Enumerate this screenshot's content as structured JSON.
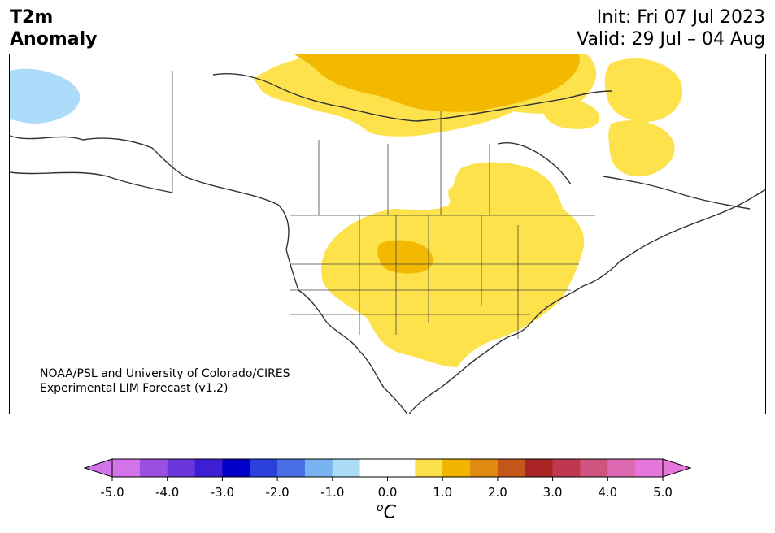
{
  "title": {
    "left_line1": "T2m",
    "left_line2": "Anomaly",
    "right_line1": "Init: Fri 07 Jul 2023",
    "right_line2": "Valid: 29 Jul – 04 Aug"
  },
  "credit": {
    "line1": "NOAA/PSL and University of Colorado/CIRES",
    "line2": "Experimental LIM Forecast (v1.2)"
  },
  "colorbar": {
    "unit_base": "C",
    "unit_prefix": "o",
    "min": -5.0,
    "max": 5.0,
    "ticks": [
      "-5.0",
      "-4.0",
      "-3.0",
      "-2.0",
      "-1.0",
      "0.0",
      "1.0",
      "2.0",
      "3.0",
      "4.0",
      "5.0"
    ],
    "colors": [
      "#d373e9",
      "#9b4fe0",
      "#6a37dc",
      "#3d1fd3",
      "#0000c9",
      "#2a3fdc",
      "#4a6fe6",
      "#79b3f2",
      "#addcf7",
      "#ffffff",
      "#ffffff",
      "#fbe04a",
      "#f2b600",
      "#df8a10",
      "#c4561a",
      "#ab2425",
      "#c03750",
      "#cf5580",
      "#dc69b2",
      "#e776dc"
    ],
    "under_color": "#d373e9",
    "over_color": "#e776dc"
  },
  "map": {
    "region": "North America",
    "anomaly_colors": {
      "warm_light": "#fde24c",
      "warm_medium": "#f3b800",
      "warm_strong": "#e99e00",
      "cold_light": "#acdcfa"
    }
  }
}
